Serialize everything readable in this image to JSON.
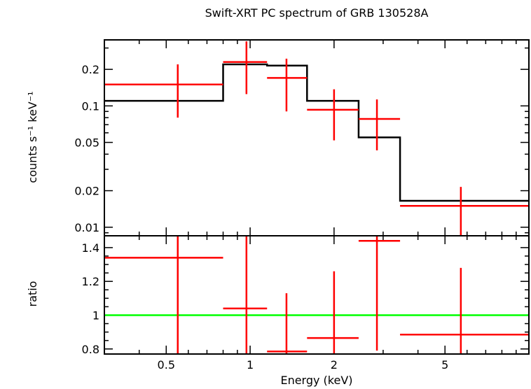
{
  "chart_data": [
    {
      "type": "scatter",
      "panel": "spectrum",
      "title": "Swift-XRT PC spectrum of GRB 130528A",
      "ylabel": "counts s⁻¹ keV⁻¹",
      "xscale": "log",
      "yscale": "log",
      "xlim": [
        0.3,
        10
      ],
      "ylim": [
        0.0085,
        0.35
      ],
      "yticks": [
        0.01,
        0.02,
        0.05,
        0.1,
        0.2
      ],
      "ytick_labels": [
        "0.01",
        "0.02",
        "0.05",
        "0.1",
        "0.2"
      ],
      "series": [
        {
          "kind": "data",
          "color": "#ff0000",
          "points": [
            {
              "x": 0.55,
              "xlo": 0.3,
              "xhi": 0.8,
              "y": 0.15,
              "ylo": 0.08,
              "yhi": 0.22
            },
            {
              "x": 0.97,
              "xlo": 0.8,
              "xhi": 1.15,
              "y": 0.23,
              "ylo": 0.125,
              "yhi": 0.34
            },
            {
              "x": 1.35,
              "xlo": 1.15,
              "xhi": 1.6,
              "y": 0.17,
              "ylo": 0.09,
              "yhi": 0.245
            },
            {
              "x": 2.0,
              "xlo": 1.6,
              "xhi": 2.45,
              "y": 0.093,
              "ylo": 0.052,
              "yhi": 0.137
            },
            {
              "x": 2.85,
              "xlo": 2.45,
              "xhi": 3.45,
              "y": 0.078,
              "ylo": 0.043,
              "yhi": 0.113
            },
            {
              "x": 5.7,
              "xlo": 3.45,
              "xhi": 10.0,
              "y": 0.015,
              "ylo": 0.0085,
              "yhi": 0.0215
            }
          ]
        },
        {
          "kind": "model",
          "color": "#000000",
          "steps": [
            {
              "xlo": 0.3,
              "xhi": 0.8,
              "y": 0.11
            },
            {
              "xlo": 0.8,
              "xhi": 1.15,
              "y": 0.22
            },
            {
              "xlo": 1.15,
              "xhi": 1.6,
              "y": 0.215
            },
            {
              "xlo": 1.6,
              "xhi": 2.45,
              "y": 0.11
            },
            {
              "xlo": 2.45,
              "xhi": 3.45,
              "y": 0.055
            },
            {
              "xlo": 3.45,
              "xhi": 10.0,
              "y": 0.0165
            }
          ]
        }
      ]
    },
    {
      "type": "scatter",
      "panel": "ratio",
      "xlabel": "Energy (keV)",
      "ylabel": "ratio",
      "xscale": "log",
      "xlim": [
        0.3,
        10
      ],
      "ylim": [
        0.77,
        1.47
      ],
      "xticks": [
        0.5,
        1,
        2,
        5
      ],
      "xtick_labels": [
        "0.5",
        "1",
        "2",
        "5"
      ],
      "yticks": [
        0.8,
        1.0,
        1.2,
        1.4
      ],
      "ytick_labels": [
        "0.8",
        "1",
        "1.2",
        "1.4"
      ],
      "reference_line": {
        "y": 1.0,
        "color": "#00ff00"
      },
      "series": [
        {
          "kind": "data",
          "color": "#ff0000",
          "points": [
            {
              "x": 0.55,
              "xlo": 0.3,
              "xhi": 0.8,
              "y": 1.34,
              "ylo": 0.77,
              "yhi": 1.47
            },
            {
              "x": 0.97,
              "xlo": 0.8,
              "xhi": 1.15,
              "y": 1.04,
              "ylo": 0.77,
              "yhi": 1.47
            },
            {
              "x": 1.35,
              "xlo": 1.15,
              "xhi": 1.6,
              "y": 0.785,
              "ylo": 0.77,
              "yhi": 1.13
            },
            {
              "x": 2.0,
              "xlo": 1.6,
              "xhi": 2.45,
              "y": 0.865,
              "ylo": 0.77,
              "yhi": 1.26
            },
            {
              "x": 2.85,
              "xlo": 2.45,
              "xhi": 3.45,
              "y": 1.44,
              "ylo": 0.79,
              "yhi": 1.47
            },
            {
              "x": 5.7,
              "xlo": 3.45,
              "xhi": 10.0,
              "y": 0.885,
              "ylo": 0.77,
              "yhi": 1.28
            }
          ]
        }
      ]
    }
  ]
}
